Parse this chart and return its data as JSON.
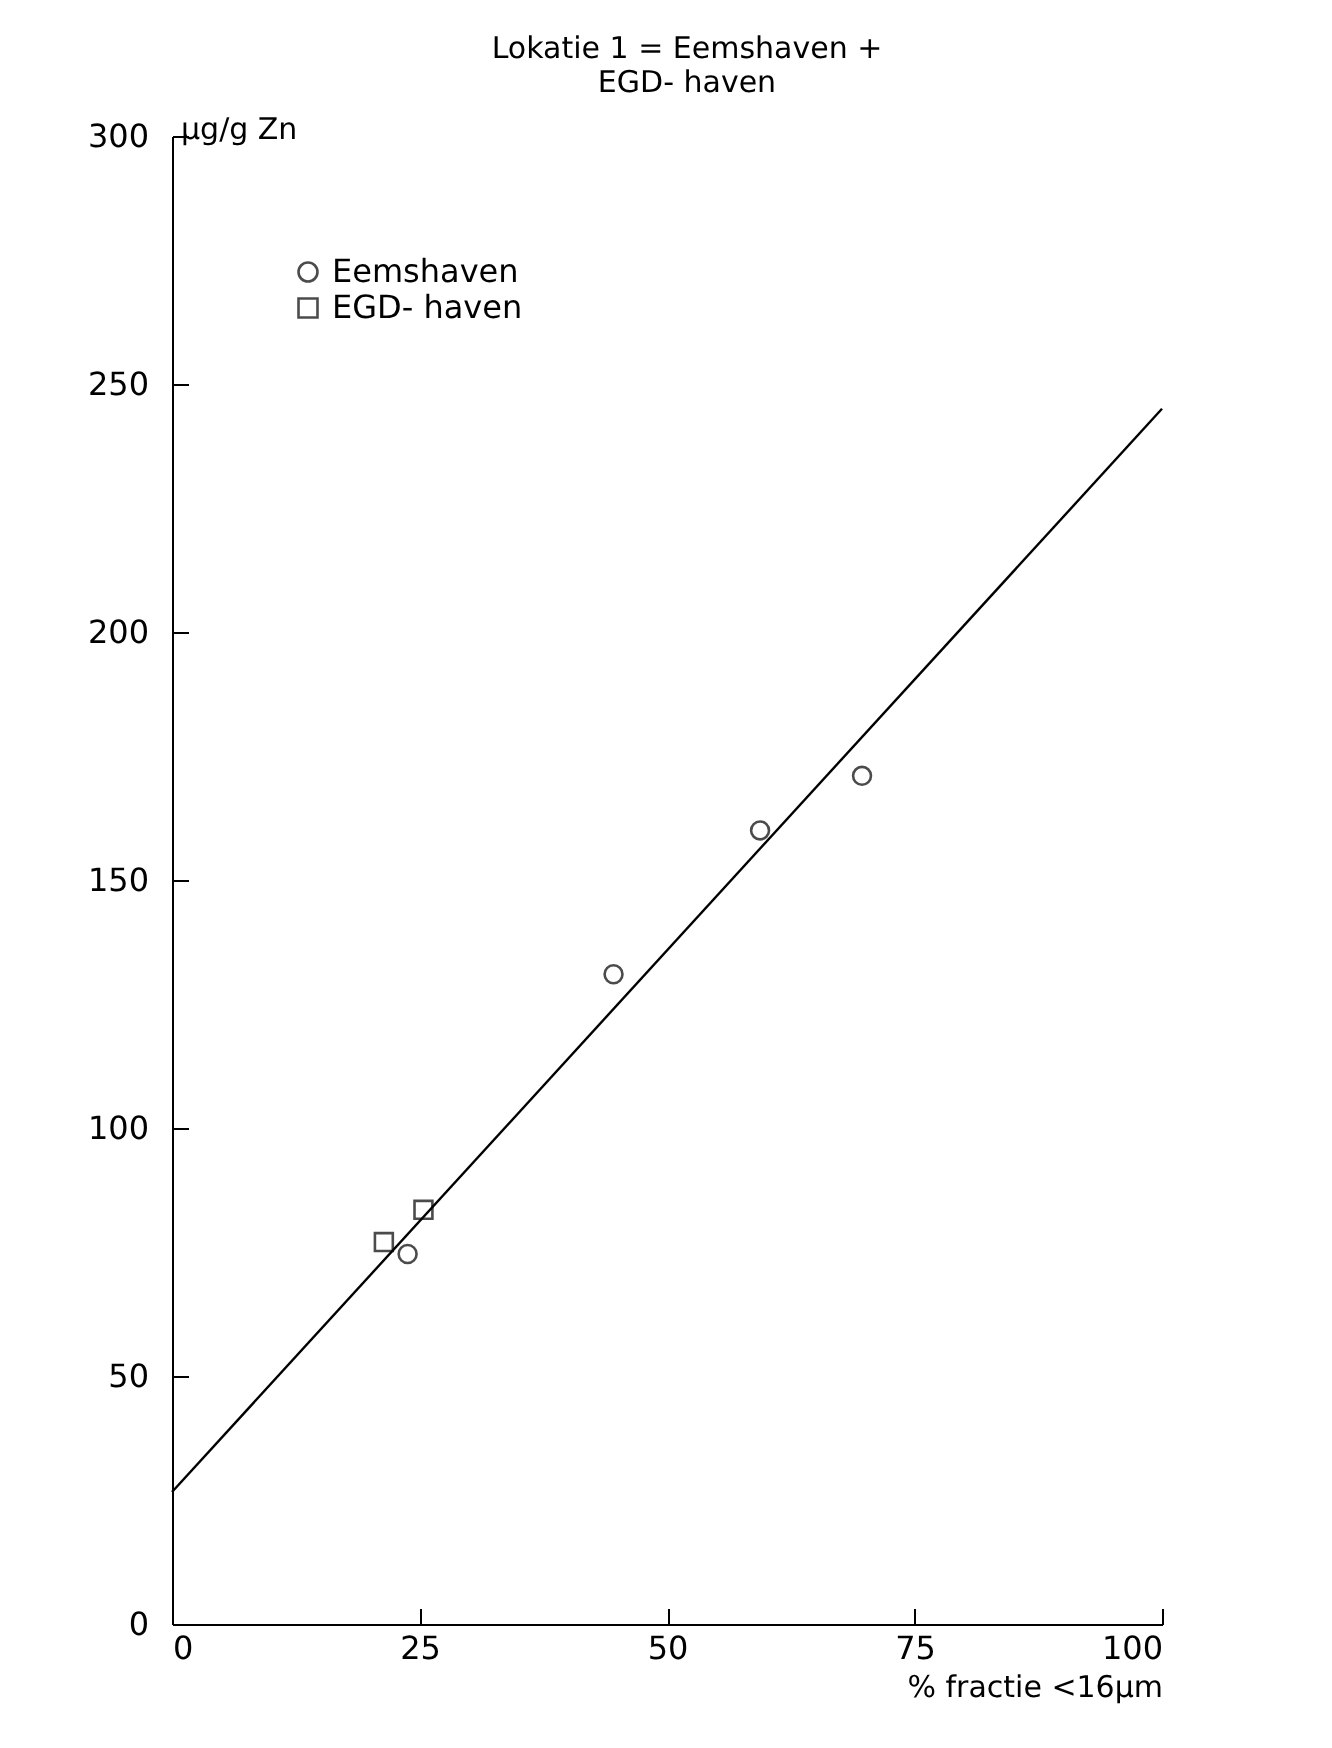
{
  "chart_data": {
    "type": "scatter",
    "title": "Lokatie 1 = Eemshaven +\nEGD- haven",
    "xlabel": "% fractie <16µm",
    "ylabel": "µg/g Zn",
    "xlim": [
      0,
      100
    ],
    "ylim": [
      0,
      300
    ],
    "xticks": [
      0,
      25,
      50,
      75,
      100
    ],
    "yticks": [
      0,
      50,
      100,
      150,
      200,
      250,
      300
    ],
    "grid": false,
    "legend": "top left",
    "series": [
      {
        "name": "Eemshaven",
        "color": "#000000",
        "marker": "circle",
        "x": [
          23.8,
          44.6,
          59.4,
          69.7
        ],
        "values": [
          74.6,
          131,
          160,
          171
        ]
      },
      {
        "name": "EGD- haven",
        "color": "#000000",
        "marker": "square",
        "x": [
          21.4,
          25.4
        ],
        "values": [
          77,
          83.5
        ]
      },
      {
        "type": "line",
        "color": "#000000",
        "marker": "none",
        "line_style": "solid",
        "x": [
          0,
          100
        ],
        "values": [
          26.6,
          245
        ]
      }
    ]
  }
}
